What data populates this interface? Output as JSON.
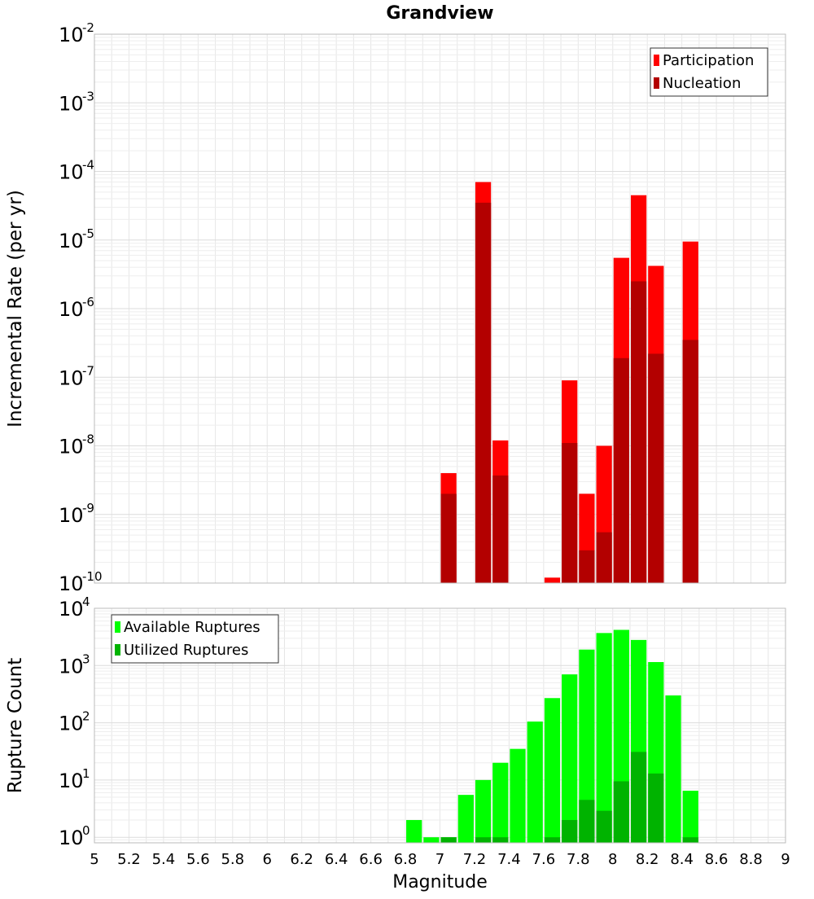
{
  "chart_data": [
    {
      "type": "bar",
      "title": "Grandview",
      "ylabel": "Incremental Rate (per yr)",
      "xlabel": "",
      "xlim": [
        5,
        9
      ],
      "ylim": [
        1e-10,
        0.01
      ],
      "yscale": "log",
      "bin_width": 0.1,
      "grid": true,
      "legend_position": "top-right",
      "series": [
        {
          "name": "Participation",
          "color": "#ff0000",
          "x": [
            7.05,
            7.25,
            7.35,
            7.65,
            7.75,
            7.85,
            7.95,
            8.05,
            8.15,
            8.25,
            8.45
          ],
          "values": [
            4e-09,
            7e-05,
            1.2e-08,
            1.2e-10,
            9e-08,
            2e-09,
            1e-08,
            5.5e-06,
            4.5e-05,
            4.2e-06,
            9.5e-06
          ]
        },
        {
          "name": "Nucleation",
          "color": "#b30000",
          "x": [
            7.05,
            7.25,
            7.35,
            7.75,
            7.85,
            7.95,
            8.05,
            8.15,
            8.25,
            8.45
          ],
          "values": [
            2e-09,
            3.5e-05,
            3.7e-09,
            1.1e-08,
            3e-10,
            5.5e-10,
            1.9e-07,
            2.5e-06,
            2.2e-07,
            3.5e-07
          ]
        }
      ]
    },
    {
      "type": "bar",
      "title": "",
      "ylabel": "Rupture Count",
      "xlabel": "Magnitude",
      "xlim": [
        5,
        9
      ],
      "ylim": [
        0.8,
        10000.0
      ],
      "yscale": "log",
      "bin_width": 0.1,
      "grid": true,
      "legend_position": "top-left",
      "xticks": [
        "5",
        "5.2",
        "5.4",
        "5.6",
        "5.8",
        "6",
        "6.2",
        "6.4",
        "6.6",
        "6.8",
        "7",
        "7.2",
        "7.4",
        "7.6",
        "7.8",
        "8",
        "8.2",
        "8.4",
        "8.6",
        "8.8",
        "9"
      ],
      "series": [
        {
          "name": "Available Ruptures",
          "color": "#00ff00",
          "x": [
            6.85,
            6.95,
            7.05,
            7.15,
            7.25,
            7.35,
            7.45,
            7.55,
            7.65,
            7.75,
            7.85,
            7.95,
            8.05,
            8.15,
            8.25,
            8.35,
            8.45
          ],
          "values": [
            2,
            1,
            1,
            5.5,
            10,
            20,
            35,
            105,
            270,
            700,
            1900,
            3700,
            4200,
            2800,
            1150,
            300,
            6.5
          ]
        },
        {
          "name": "Utilized Ruptures",
          "color": "#00b300",
          "x": [
            7.05,
            7.25,
            7.35,
            7.65,
            7.75,
            7.85,
            7.95,
            8.05,
            8.15,
            8.25,
            8.45
          ],
          "values": [
            1,
            1,
            1,
            1,
            2,
            4.5,
            2.9,
            9.5,
            31,
            13,
            1
          ]
        }
      ]
    }
  ]
}
